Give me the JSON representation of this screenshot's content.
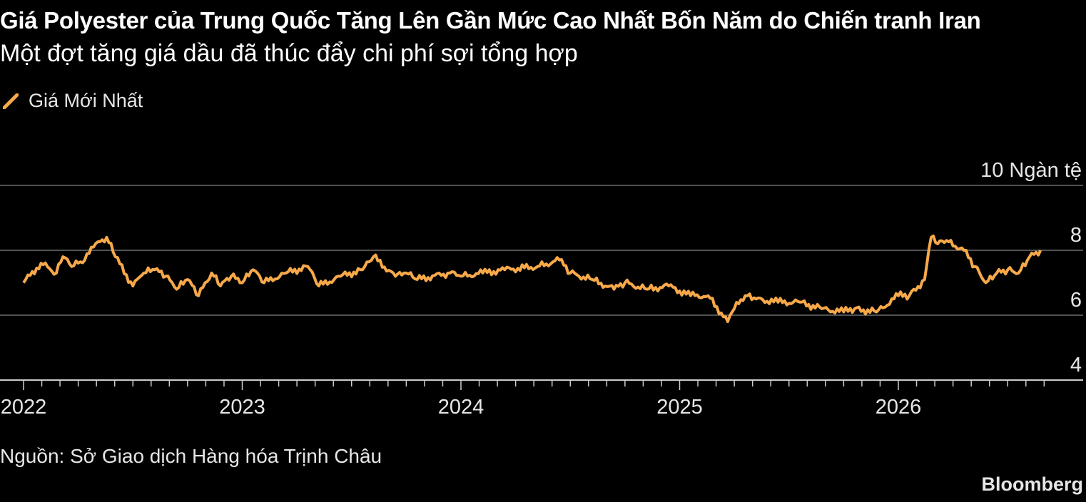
{
  "title": "Giá Polyester của Trung Quốc Tăng Lên Gần Mức Cao Nhất Bốn Năm do Chiến tranh Iran",
  "subtitle": "Một đợt tăng giá dầu đã thúc đẩy chi phí sợi tổng hợp",
  "source": "Nguồn: Sở Giao dịch Hàng hóa Trịnh Châu",
  "brand": "Bloomberg",
  "colors": {
    "background": "#000000",
    "line": "#f7a94a",
    "grid": "#6e6e6e",
    "axis": "#cccccc"
  },
  "chart_data": {
    "type": "line",
    "ylim": [
      4,
      10
    ],
    "y_unit": "10 Ngàn tệ",
    "y_ticks": [
      4,
      6,
      8
    ],
    "x_ticks": [
      "2022",
      "2023",
      "2024",
      "2025",
      "2026"
    ],
    "grid": true,
    "legend_position": "top-left",
    "series": [
      {
        "name": "Giá Mới Nhất",
        "x": [
          2022.0,
          2022.08,
          2022.15,
          2022.18,
          2022.22,
          2022.28,
          2022.32,
          2022.38,
          2022.42,
          2022.5,
          2022.55,
          2022.6,
          2022.65,
          2022.7,
          2022.75,
          2022.8,
          2022.86,
          2022.9,
          2022.95,
          2023.0,
          2023.05,
          2023.1,
          2023.2,
          2023.3,
          2023.35,
          2023.45,
          2023.55,
          2023.6,
          2023.7,
          2023.75,
          2023.8,
          2023.95,
          2024.0,
          2024.1,
          2024.2,
          2024.35,
          2024.45,
          2024.5,
          2024.6,
          2024.7,
          2024.75,
          2024.85,
          2024.95,
          2025.05,
          2025.13,
          2025.22,
          2025.25,
          2025.3,
          2025.35,
          2025.45,
          2025.55,
          2025.65,
          2025.75,
          2025.8,
          2025.9,
          2026.0,
          2026.05,
          2026.12,
          2026.15,
          2026.18,
          2026.22,
          2026.3,
          2026.35,
          2026.4,
          2026.45,
          2026.5,
          2026.55,
          2026.6,
          2026.65
        ],
        "values": [
          7.0,
          7.6,
          7.3,
          7.8,
          7.5,
          7.7,
          8.1,
          8.4,
          7.8,
          6.9,
          7.3,
          7.4,
          7.2,
          6.8,
          7.1,
          6.6,
          7.3,
          6.9,
          7.2,
          7.0,
          7.4,
          7.0,
          7.3,
          7.5,
          6.9,
          7.2,
          7.4,
          7.8,
          7.2,
          7.3,
          7.1,
          7.3,
          7.2,
          7.3,
          7.4,
          7.5,
          7.7,
          7.3,
          7.1,
          6.8,
          7.0,
          6.8,
          6.9,
          6.6,
          6.6,
          5.8,
          6.2,
          6.6,
          6.5,
          6.4,
          6.4,
          6.2,
          6.1,
          6.2,
          6.1,
          6.6,
          6.6,
          7.1,
          8.4,
          8.2,
          8.3,
          8.0,
          7.5,
          7.0,
          7.3,
          7.4,
          7.3,
          7.8,
          8.0
        ]
      }
    ]
  }
}
